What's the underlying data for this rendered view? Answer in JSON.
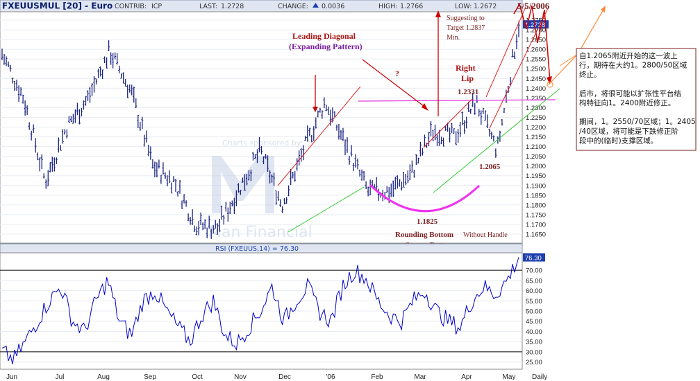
{
  "header": {
    "symbol": "FXEUUSMUL [20] - Euro",
    "contrib_label": "CONTRIB:",
    "contrib_value": "ICP",
    "last_label": "LAST:",
    "last_value": "1.2728",
    "change_label": "CHANGE:",
    "change_value": "0.0036",
    "high_label": "HIGH:",
    "high_value": "1.2766",
    "low_label": "LOW:",
    "low_value": "1.2672",
    "date": "5/5/2006"
  },
  "colors": {
    "price_bars": "#1a237e",
    "header_bg": "#dfe6f2",
    "accent_red": "#cc0000",
    "trend_green": "#33cc33",
    "neckline_magenta": "#dd33dd",
    "annotation_brown": "#7a1f1f",
    "forecast_orange": "#ff8833",
    "title_purple": "#7a1fa0",
    "rsi_line": "#0000cc",
    "label_highlight": "#1e3fae"
  },
  "watermark": {
    "top": "Charts sponsored by:",
    "bottom": "Man Financial"
  },
  "annotations": {
    "leading_diagonal_1": "Leading Diagonal",
    "leading_diagonal_2": "(Expanding  Pattern)",
    "question_mark": "?",
    "right_lip_1": "Right",
    "right_lip_2": "Lip",
    "target_1": "Suggesting to",
    "target_2": "Target 1.2837",
    "target_3": "Min.",
    "level_12331": "1.2331",
    "level_12065": "1.2065",
    "level_11825": "1.1825",
    "rounding_1": "Rounding Bottom",
    "rounding_2": "or Saucer Bottom",
    "without_handle": "Without Handle"
  },
  "side_note": {
    "lines": [
      "自1.2065附近开始的这一波上",
      "行，期待在大约1。2800/50区域",
      "终止。",
      "",
      "后市，将很可能以扩张性平台结",
      "构特征向1。2400附近修正。",
      "",
      "期间，1。2550/70区域；1。2405",
      "/40区域，将可能是下跌修正阶",
      "段中的(临时)支撑区域。"
    ]
  },
  "price_axis": {
    "ticks": [
      "1.2750",
      "1.2700",
      "1.2650",
      "1.2600",
      "1.2550",
      "1.2500",
      "1.2450",
      "1.2400",
      "1.2350",
      "1.2300",
      "1.2250",
      "1.2200",
      "1.2150",
      "1.2100",
      "1.2050",
      "1.2000",
      "1.1950",
      "1.1900",
      "1.1850",
      "1.1800",
      "1.1750",
      "1.1700",
      "1.1650"
    ],
    "last_marker": "1.2728"
  },
  "rsi": {
    "label": "RSI (FXEUUS,14) = 76.30",
    "current": "76.30",
    "ticks": [
      "70.00",
      "65.00",
      "60.00",
      "55.00",
      "50.00",
      "45.00",
      "40.00",
      "35.00",
      "30.00",
      "25.00"
    ]
  },
  "x_axis": {
    "labels": [
      "Jun",
      "Jul",
      "Aug",
      "Sep",
      "Oct",
      "Nov",
      "Dec",
      "'06",
      "Feb",
      "Mar",
      "Apr",
      "May",
      "Daily"
    ]
  },
  "chart_data": [
    {
      "type": "line",
      "title": "FXEUUSMUL [20] - Euro",
      "frequency": "Daily",
      "x": [
        "Jun",
        "Jul",
        "Aug",
        "Sep",
        "Oct",
        "Nov",
        "Dec",
        "'06",
        "Feb",
        "Mar",
        "Apr",
        "May"
      ],
      "ylim": [
        1.1625,
        1.2775
      ],
      "series": [
        {
          "name": "FXEUUSMUL",
          "approx_monthly_close": [
            1.24,
            1.195,
            1.23,
            1.24,
            1.2,
            1.172,
            1.185,
            1.215,
            1.19,
            1.2,
            1.215,
            1.2728
          ]
        }
      ],
      "key_levels": [
        1.2331,
        1.2065,
        1.1825
      ]
    },
    {
      "type": "line",
      "title": "RSI (FXEUUS,14) = 76.30",
      "ylim": [
        22.5,
        77.5
      ],
      "reference_lines": [
        70,
        30
      ],
      "series": [
        {
          "name": "RSI (FXEUUS,14)",
          "approx_values": [
            30,
            26,
            35,
            45,
            55,
            62,
            45,
            40,
            55,
            65,
            45,
            38,
            55,
            60,
            50,
            42,
            35,
            48,
            55,
            38,
            34,
            42,
            50,
            62,
            45,
            55,
            62,
            50,
            45,
            62,
            70,
            66,
            55,
            48,
            45,
            55,
            60,
            50,
            45,
            42,
            55,
            62,
            58,
            65,
            76.3
          ]
        }
      ]
    }
  ]
}
